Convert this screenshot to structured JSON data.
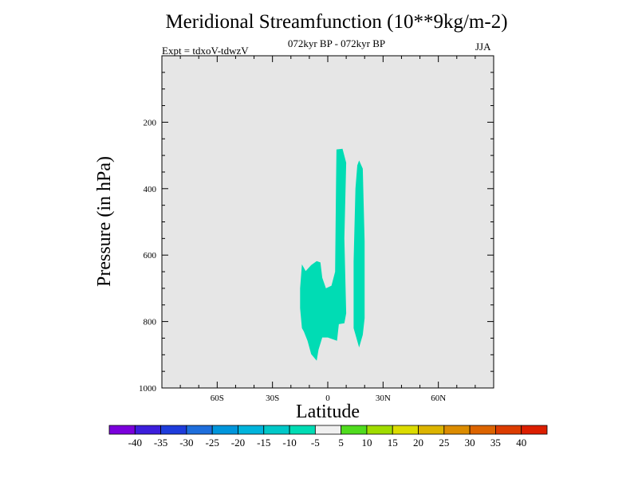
{
  "header": {
    "title": "Meridional Streamfunction (10**9kg/m-2)",
    "subtitle": "072kyr BP - 072kyr BP",
    "experiment": "Expt = tdxoV-tdwzV",
    "season": "JJA"
  },
  "chart_data": {
    "type": "contour",
    "xlabel": "Latitude",
    "ylabel": "Pressure (in hPa)",
    "xlim": [
      -90,
      90
    ],
    "ylim": [
      1000,
      0
    ],
    "x_ticks": [
      {
        "value": -60,
        "label": "60S"
      },
      {
        "value": -30,
        "label": "30S"
      },
      {
        "value": 0,
        "label": "0"
      },
      {
        "value": 30,
        "label": "30N"
      },
      {
        "value": 60,
        "label": "60N"
      }
    ],
    "y_ticks": [
      {
        "value": 200,
        "label": "200"
      },
      {
        "value": 400,
        "label": "400"
      },
      {
        "value": 600,
        "label": "600"
      },
      {
        "value": 800,
        "label": "800"
      },
      {
        "value": 1000,
        "label": "1000"
      }
    ],
    "background_color": "#e6e6e6",
    "contour_regions": [
      {
        "level_range": [
          -10,
          -5
        ],
        "color": "#00dcb4",
        "outline": [
          [
            -14,
            628
          ],
          [
            -12,
            648
          ],
          [
            -9,
            630
          ],
          [
            -6,
            618
          ],
          [
            -4,
            622
          ],
          [
            -3,
            668
          ],
          [
            -1,
            700
          ],
          [
            2,
            692
          ],
          [
            4,
            650
          ],
          [
            4.5,
            375
          ],
          [
            4.7,
            282
          ],
          [
            8,
            280
          ],
          [
            10,
            322
          ],
          [
            9,
            550
          ],
          [
            10,
            775
          ],
          [
            9,
            805
          ],
          [
            6,
            808
          ],
          [
            5,
            858
          ],
          [
            0,
            848
          ],
          [
            -3,
            848
          ],
          [
            -5,
            885
          ],
          [
            -6,
            918
          ],
          [
            -9,
            898
          ],
          [
            -11,
            858
          ],
          [
            -13,
            830
          ],
          [
            -14,
            820
          ],
          [
            -15,
            760
          ],
          [
            -15,
            700
          ]
        ]
      },
      {
        "level_range": [
          -10,
          -5
        ],
        "color": "#00dcb4",
        "outline": [
          [
            16,
            330
          ],
          [
            17,
            315
          ],
          [
            19,
            340
          ],
          [
            20,
            560
          ],
          [
            20,
            790
          ],
          [
            19,
            840
          ],
          [
            17,
            878
          ],
          [
            14,
            820
          ],
          [
            14,
            620
          ],
          [
            15,
            400
          ]
        ]
      }
    ],
    "colorbar": {
      "labels": [
        "-40",
        "-35",
        "-30",
        "-25",
        "-20",
        "-15",
        "-10",
        "-5",
        "5",
        "10",
        "15",
        "20",
        "25",
        "30",
        "35",
        "40"
      ],
      "colors": [
        "#7b00dc",
        "#3c1edc",
        "#1e3cdc",
        "#1e6edc",
        "#0096dc",
        "#00b4dc",
        "#00c8c8",
        "#00dcb4",
        "#f0f0f0",
        "#50dc1e",
        "#a0dc00",
        "#dcdc00",
        "#dcb400",
        "#dc8c00",
        "#dc6400",
        "#dc3c00",
        "#dc1e00"
      ]
    }
  }
}
